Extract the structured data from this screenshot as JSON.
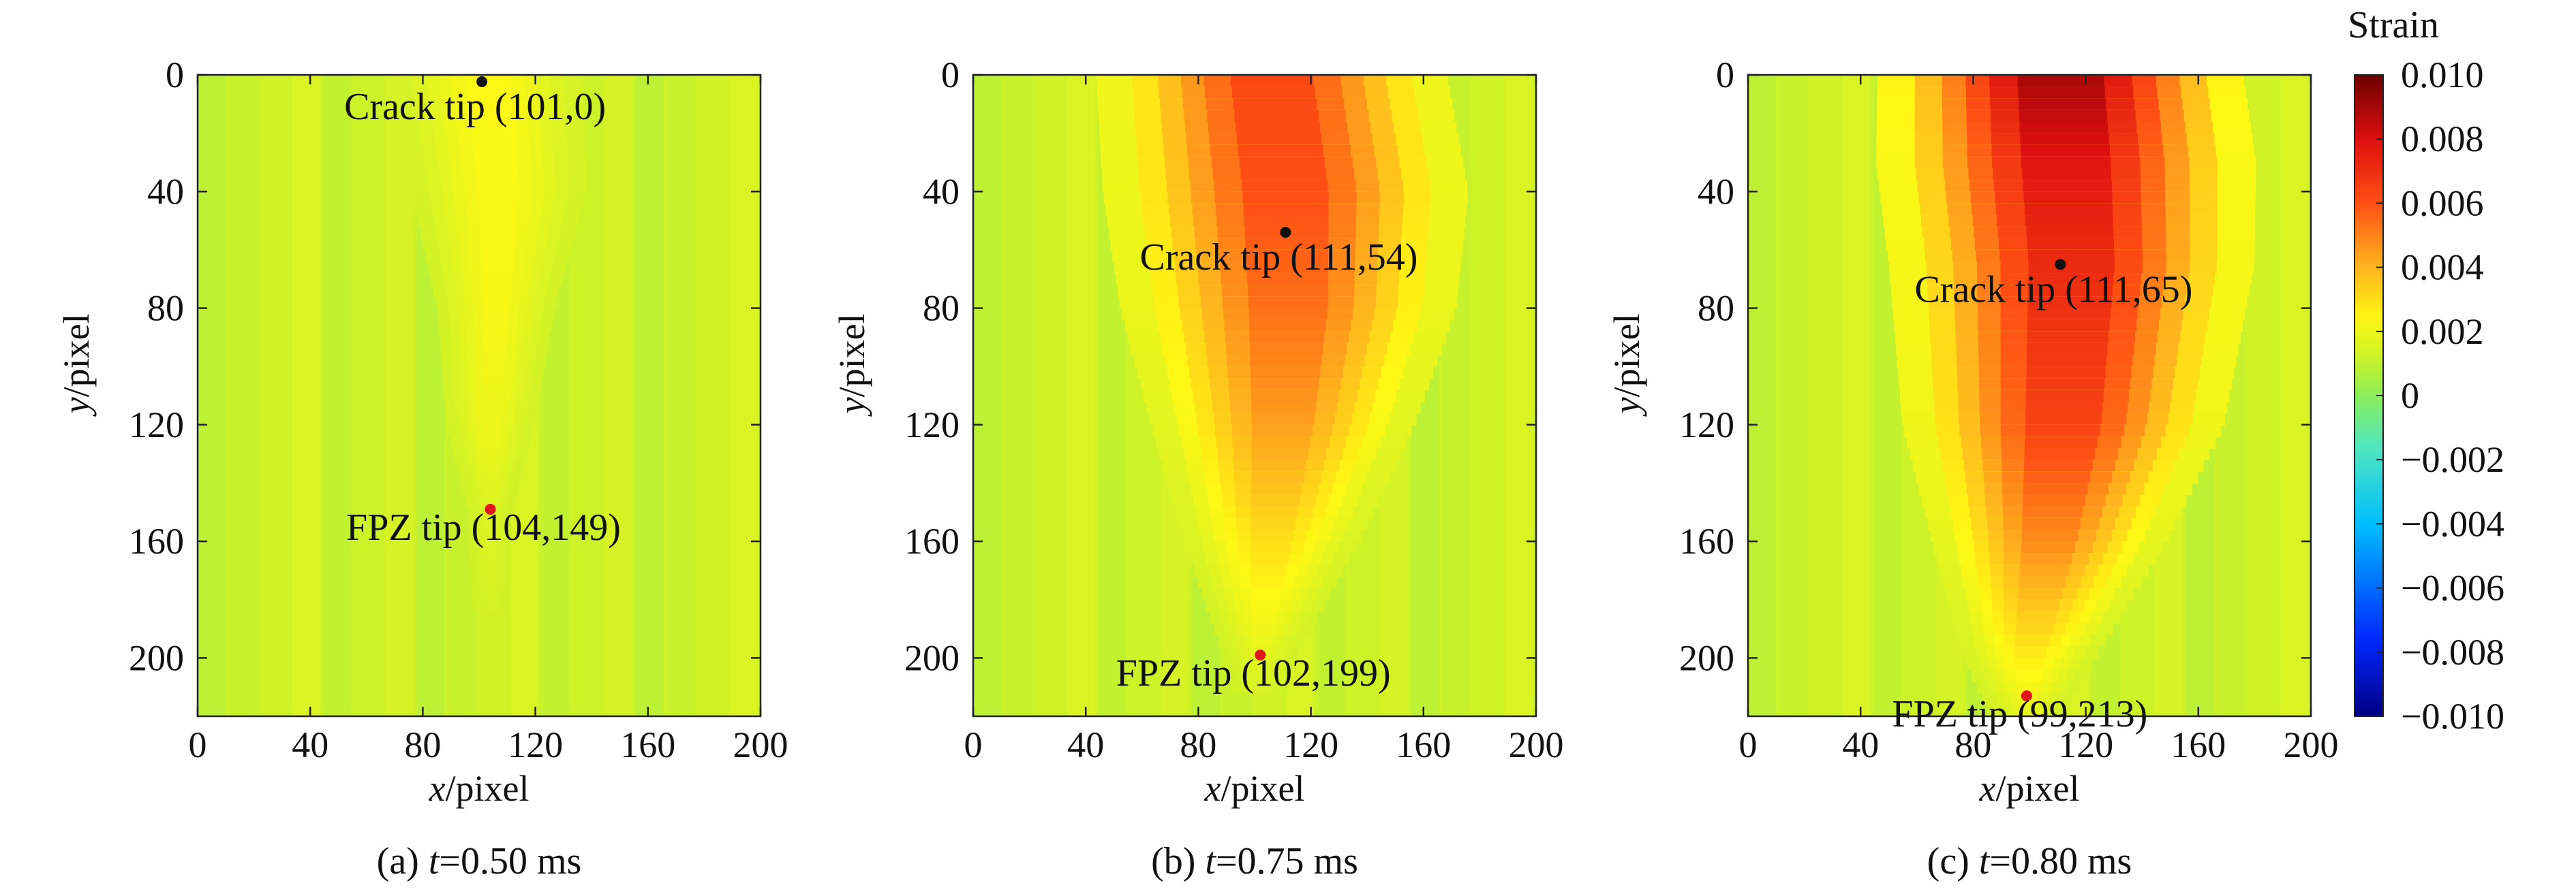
{
  "colorbar": {
    "title": "Strain",
    "ticks": [
      {
        "value": 0.01,
        "label": "0.010"
      },
      {
        "value": 0.008,
        "label": "0.008"
      },
      {
        "value": 0.006,
        "label": "0.006"
      },
      {
        "value": 0.004,
        "label": "0.004"
      },
      {
        "value": 0.002,
        "label": "0.002"
      },
      {
        "value": 0.0,
        "label": "0"
      },
      {
        "value": -0.002,
        "label": "−0.002"
      },
      {
        "value": -0.004,
        "label": "−0.004"
      },
      {
        "value": -0.006,
        "label": "−0.006"
      },
      {
        "value": -0.008,
        "label": "−0.008"
      },
      {
        "value": -0.01,
        "label": "−0.010"
      }
    ],
    "range": [
      -0.01,
      0.01
    ]
  },
  "chart_data": [
    {
      "type": "heatmap",
      "caption": {
        "prefix": "(a) ",
        "var": "t",
        "rest": "=0.50 ms"
      },
      "xlabel": {
        "var": "x",
        "rest": "/pixel"
      },
      "ylabel": {
        "var": "y",
        "rest": "/pixel"
      },
      "xlim": [
        0,
        200
      ],
      "ylim": [
        220,
        0
      ],
      "xticks": [
        0,
        40,
        80,
        120,
        160,
        200
      ],
      "yticks": [
        0,
        40,
        80,
        120,
        160,
        200
      ],
      "background_strain": 0.0012,
      "band": [
        {
          "y": 0,
          "center": 103,
          "width": 26,
          "peak": 0.0025
        },
        {
          "y": 40,
          "center": 107,
          "width": 24,
          "peak": 0.0024
        },
        {
          "y": 80,
          "center": 106,
          "width": 16,
          "peak": 0.0023
        },
        {
          "y": 120,
          "center": 104,
          "width": 12,
          "peak": 0.0021
        },
        {
          "y": 150,
          "center": 104,
          "width": 6,
          "peak": 0.0016
        },
        {
          "y": 220,
          "center": 104,
          "width": 4,
          "peak": 0.0012
        }
      ],
      "points": [
        {
          "label": "Crack tip (101,0)",
          "x": 101,
          "y": 0,
          "color": "#111111"
        },
        {
          "label": "FPZ tip (104,149)",
          "x": 104,
          "y": 149,
          "color": "#e0161b"
        }
      ]
    },
    {
      "type": "heatmap",
      "caption": {
        "prefix": "(b) ",
        "var": "t",
        "rest": "=0.75 ms"
      },
      "xlabel": {
        "var": "x",
        "rest": "/pixel"
      },
      "ylabel": {
        "var": "y",
        "rest": "/pixel"
      },
      "xlim": [
        0,
        200
      ],
      "ylim": [
        220,
        0
      ],
      "xticks": [
        0,
        40,
        80,
        120,
        160,
        200
      ],
      "yticks": [
        0,
        40,
        80,
        120,
        160,
        200
      ],
      "background_strain": 0.0012,
      "band": [
        {
          "y": 0,
          "center": 106,
          "width": 48,
          "peak": 0.0068
        },
        {
          "y": 40,
          "center": 111,
          "width": 50,
          "peak": 0.0066
        },
        {
          "y": 80,
          "center": 112,
          "width": 46,
          "peak": 0.0058
        },
        {
          "y": 120,
          "center": 110,
          "width": 36,
          "peak": 0.0048
        },
        {
          "y": 160,
          "center": 106,
          "width": 24,
          "peak": 0.0032
        },
        {
          "y": 199,
          "center": 102,
          "width": 10,
          "peak": 0.0018
        },
        {
          "y": 220,
          "center": 101,
          "width": 6,
          "peak": 0.0012
        }
      ],
      "points": [
        {
          "label": "Crack tip (111,54)",
          "x": 111,
          "y": 54,
          "color": "#111111"
        },
        {
          "label": "FPZ tip (102,199)",
          "x": 102,
          "y": 199,
          "color": "#e0161b"
        }
      ]
    },
    {
      "type": "heatmap",
      "caption": {
        "prefix": "(c) ",
        "var": "t",
        "rest": "=0.80 ms"
      },
      "xlabel": {
        "var": "x",
        "rest": "/pixel"
      },
      "ylabel": {
        "var": "y",
        "rest": "/pixel"
      },
      "xlim": [
        0,
        200
      ],
      "ylim": [
        220,
        0
      ],
      "xticks": [
        0,
        40,
        80,
        120,
        160,
        200
      ],
      "yticks": [
        0,
        40,
        80,
        120,
        160,
        200
      ],
      "background_strain": 0.0012,
      "band": [
        {
          "y": 0,
          "center": 111,
          "width": 50,
          "peak": 0.0098
        },
        {
          "y": 30,
          "center": 113,
          "width": 52,
          "peak": 0.0085
        },
        {
          "y": 65,
          "center": 115,
          "width": 50,
          "peak": 0.0078
        },
        {
          "y": 120,
          "center": 112,
          "width": 44,
          "peak": 0.007
        },
        {
          "y": 160,
          "center": 107,
          "width": 32,
          "peak": 0.0052
        },
        {
          "y": 200,
          "center": 100,
          "width": 18,
          "peak": 0.0028
        },
        {
          "y": 220,
          "center": 99,
          "width": 10,
          "peak": 0.0018
        }
      ],
      "points": [
        {
          "label": "Crack tip (111,65)",
          "x": 111,
          "y": 65,
          "color": "#111111"
        },
        {
          "label": "FPZ tip (99,213)",
          "x": 99,
          "y": 213,
          "color": "#e0161b"
        }
      ]
    }
  ]
}
